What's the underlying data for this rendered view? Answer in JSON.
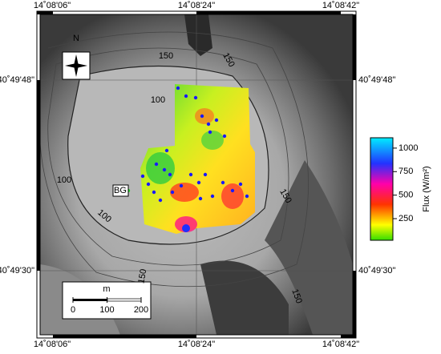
{
  "map": {
    "north": "N",
    "top_labels": [
      "14˚08'06\"",
      "14˚08'24\"",
      "14˚08'42\""
    ],
    "bottom_labels": [
      "14˚08'06\"",
      "14˚08'24\"",
      "14˚08'42\""
    ],
    "left_labels": [
      "40˚49'48\"",
      "40˚49'30\""
    ],
    "right_labels": [
      "40˚49'48\"",
      "40˚49'30\""
    ],
    "contour_labels": [
      "150",
      "150",
      "100",
      "100",
      "100",
      "150",
      "150",
      "150"
    ],
    "site_label": "BG",
    "scale_bar": {
      "unit": "m",
      "ticks": [
        0,
        100,
        200
      ]
    },
    "colorbar": {
      "label": "Flux (W/m²)",
      "range": [
        20,
        1110
      ],
      "ticks": [
        250,
        500,
        750,
        1000
      ]
    }
  }
}
